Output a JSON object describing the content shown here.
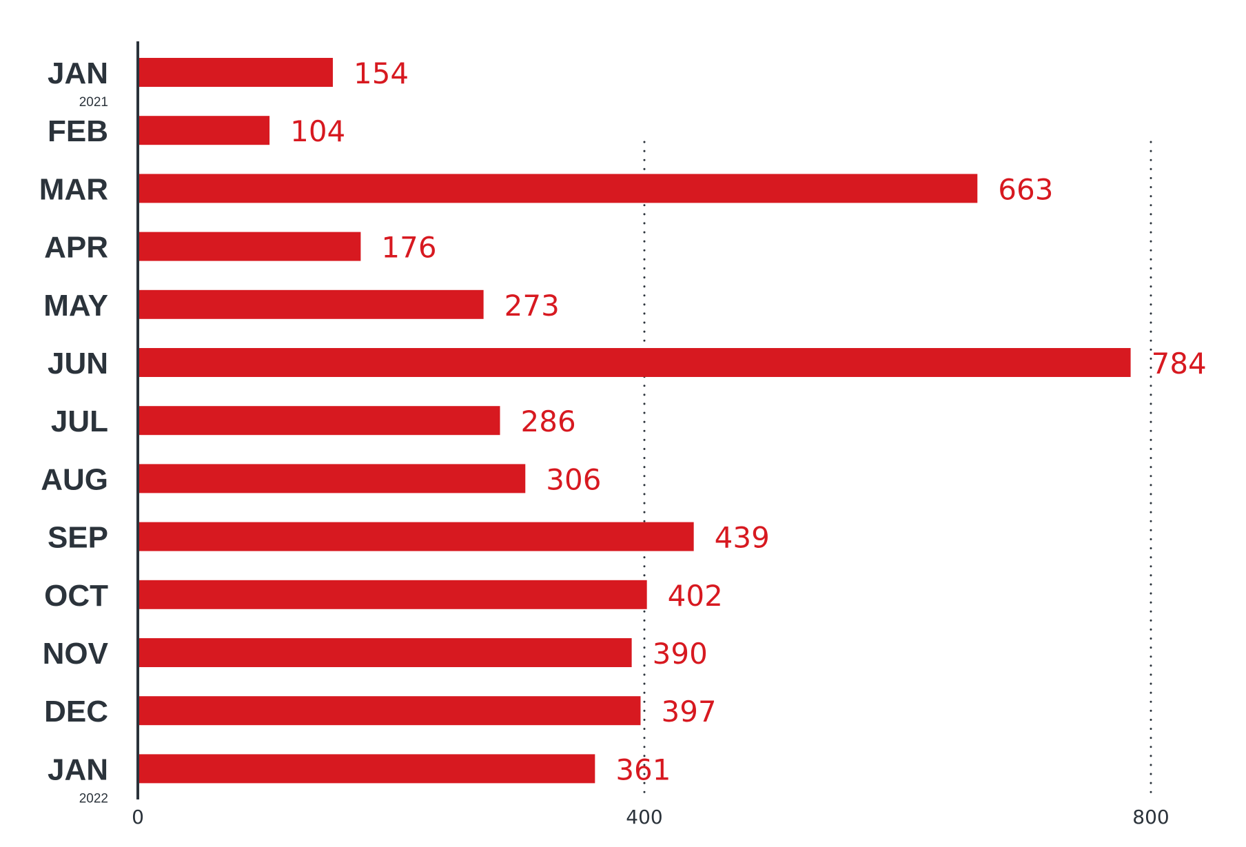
{
  "chart_data": {
    "type": "bar",
    "orientation": "horizontal",
    "categories": [
      "JAN",
      "FEB",
      "MAR",
      "APR",
      "MAY",
      "JUN",
      "JUL",
      "AUG",
      "SEP",
      "OCT",
      "NOV",
      "DEC",
      "JAN"
    ],
    "category_years": [
      "2021",
      "",
      "",
      "",
      "",
      "",
      "",
      "",
      "",
      "",
      "",
      "",
      "2022"
    ],
    "values": [
      154,
      104,
      663,
      176,
      273,
      784,
      286,
      306,
      439,
      402,
      390,
      397,
      361
    ],
    "value_labels": [
      "154",
      "104",
      "663",
      "176",
      "273",
      "784",
      "286",
      "306",
      "439",
      "402",
      "390",
      "397",
      "361"
    ],
    "xlim": [
      0,
      800
    ],
    "xticks": [
      0,
      400,
      800
    ],
    "xtick_labels": [
      "0",
      "400",
      "800"
    ],
    "gridlines": [
      400,
      800
    ],
    "grid": "dotted-vertical",
    "legend": "none",
    "colors": {
      "bar": "#d71920",
      "value_text": "#d71920",
      "axis": "#2b333b",
      "label_text": "#2b333b",
      "grid": "#2b333b"
    }
  }
}
